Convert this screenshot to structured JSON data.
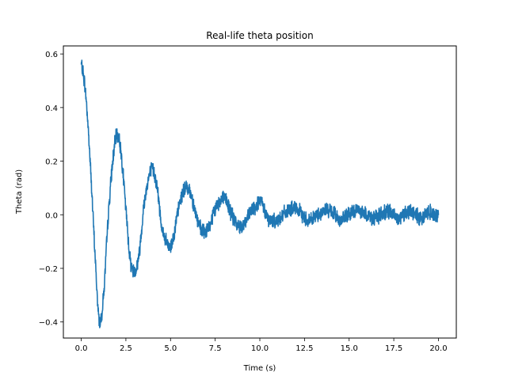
{
  "chart_data": {
    "type": "line",
    "title": "Real-life theta position",
    "xlabel": "Time (s)",
    "ylabel": "Theta (rad)",
    "xlim": [
      -1.0,
      21.0
    ],
    "ylim": [
      -0.46,
      0.63
    ],
    "xticks": [
      0.0,
      2.5,
      5.0,
      7.5,
      10.0,
      12.5,
      15.0,
      17.5,
      20.0
    ],
    "xtick_labels": [
      "0.0",
      "2.5",
      "5.0",
      "7.5",
      "10.0",
      "12.5",
      "15.0",
      "17.5",
      "20.0"
    ],
    "yticks": [
      -0.4,
      -0.2,
      0.0,
      0.2,
      0.4,
      0.6
    ],
    "ytick_labels": [
      "−0.4",
      "−0.2",
      "0.0",
      "0.2",
      "0.4",
      "0.6"
    ],
    "grid": false,
    "legend": "none",
    "series": [
      {
        "color": "#1f77b4",
        "x": [
          0.0,
          0.25,
          0.5,
          0.75,
          1.0,
          1.25,
          1.5,
          1.75,
          2.0,
          2.25,
          2.5,
          2.75,
          3.0,
          3.25,
          3.5,
          3.75,
          4.0,
          4.25,
          4.5,
          4.75,
          5.0,
          5.25,
          5.5,
          5.75,
          6.0,
          6.25,
          6.5,
          6.75,
          7.0,
          7.25,
          7.5,
          7.75,
          8.0,
          8.25,
          8.5,
          8.75,
          9.0,
          9.25,
          9.5,
          9.75,
          10.0,
          10.25,
          10.5,
          10.75,
          11.0,
          11.25,
          11.5,
          11.75,
          12.0,
          12.25,
          12.5,
          12.75,
          13.0,
          13.25,
          13.5,
          13.75,
          14.0,
          14.25,
          14.5,
          14.75,
          15.0,
          15.25,
          15.5,
          15.75,
          16.0,
          16.25,
          16.5,
          16.75,
          17.0,
          17.25,
          17.5,
          17.75,
          18.0,
          18.25,
          18.5,
          18.75,
          19.0,
          19.25,
          19.5,
          19.75,
          20.0
        ],
        "y": [
          0.56,
          0.45,
          0.2,
          -0.12,
          -0.39,
          -0.3,
          -0.02,
          0.19,
          0.3,
          0.22,
          0.02,
          -0.17,
          -0.21,
          -0.14,
          0.03,
          0.13,
          0.17,
          0.1,
          -0.04,
          -0.1,
          -0.12,
          -0.05,
          0.04,
          0.09,
          0.1,
          0.05,
          -0.02,
          -0.06,
          -0.06,
          -0.03,
          0.02,
          0.05,
          0.07,
          0.03,
          -0.01,
          -0.04,
          -0.04,
          -0.02,
          0.01,
          0.03,
          0.05,
          0.02,
          -0.02,
          -0.02,
          -0.02,
          0.0,
          0.01,
          0.02,
          0.02,
          0.01,
          -0.01,
          -0.02,
          -0.01,
          0.0,
          0.01,
          0.02,
          0.01,
          0.0,
          -0.02,
          -0.01,
          0.0,
          0.01,
          0.02,
          0.01,
          0.0,
          -0.01,
          -0.01,
          0.0,
          0.01,
          0.01,
          0.0,
          -0.01,
          0.0,
          0.01,
          0.01,
          0.0,
          -0.01,
          0.0,
          0.01,
          0.0,
          0.0
        ]
      }
    ]
  }
}
